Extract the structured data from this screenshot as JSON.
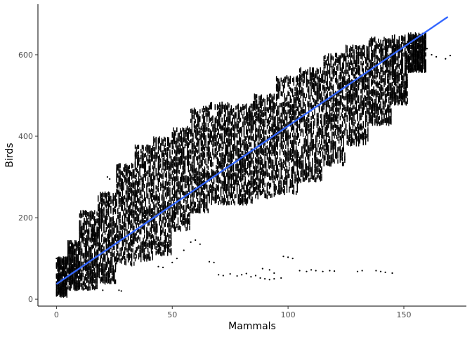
{
  "chart_data": {
    "type": "scatter",
    "title": "",
    "xlabel": "Mammals",
    "ylabel": "Birds",
    "xlim": [
      -8,
      177
    ],
    "ylim": [
      -17,
      724
    ],
    "x_ticks": [
      0,
      50,
      100,
      150
    ],
    "y_ticks": [
      0,
      200,
      400,
      600
    ],
    "grid": false,
    "legend": "none",
    "point_color": "#000000",
    "trend_line": {
      "color": "#3366FF",
      "x": [
        0,
        169
      ],
      "y": [
        37,
        693
      ]
    },
    "point_density_bands": [
      {
        "x_range": [
          0,
          5
        ],
        "y_range": [
          8,
          100
        ]
      },
      {
        "x_range": [
          5,
          10
        ],
        "y_range": [
          25,
          140
        ]
      },
      {
        "x_range": [
          10,
          18
        ],
        "y_range": [
          25,
          215
        ]
      },
      {
        "x_range": [
          18,
          26
        ],
        "y_range": [
          40,
          260
        ]
      },
      {
        "x_range": [
          26,
          34
        ],
        "y_range": [
          85,
          330
        ]
      },
      {
        "x_range": [
          34,
          42
        ],
        "y_range": [
          95,
          375
        ]
      },
      {
        "x_range": [
          42,
          50
        ],
        "y_range": [
          110,
          395
        ]
      },
      {
        "x_range": [
          50,
          58
        ],
        "y_range": [
          170,
          420
        ]
      },
      {
        "x_range": [
          58,
          66
        ],
        "y_range": [
          215,
          470
        ]
      },
      {
        "x_range": [
          66,
          75
        ],
        "y_range": [
          235,
          480
        ]
      },
      {
        "x_range": [
          75,
          85
        ],
        "y_range": [
          235,
          475
        ]
      },
      {
        "x_range": [
          85,
          95
        ],
        "y_range": [
          250,
          500
        ]
      },
      {
        "x_range": [
          95,
          105
        ],
        "y_range": [
          260,
          545
        ]
      },
      {
        "x_range": [
          105,
          115
        ],
        "y_range": [
          290,
          565
        ]
      },
      {
        "x_range": [
          115,
          125
        ],
        "y_range": [
          330,
          600
        ]
      },
      {
        "x_range": [
          125,
          135
        ],
        "y_range": [
          380,
          620
        ]
      },
      {
        "x_range": [
          135,
          145
        ],
        "y_range": [
          430,
          640
        ]
      },
      {
        "x_range": [
          145,
          152
        ],
        "y_range": [
          480,
          645
        ]
      },
      {
        "x_range": [
          152,
          160
        ],
        "y_range": [
          560,
          650
        ]
      }
    ],
    "outlier_points": [
      [
        22,
        300
      ],
      [
        23,
        295
      ],
      [
        12,
        25
      ],
      [
        20,
        22
      ],
      [
        27,
        22
      ],
      [
        28,
        20
      ],
      [
        0,
        100
      ],
      [
        1,
        85
      ],
      [
        3,
        70
      ],
      [
        44,
        80
      ],
      [
        46,
        78
      ],
      [
        50,
        90
      ],
      [
        52,
        100
      ],
      [
        55,
        120
      ],
      [
        58,
        140
      ],
      [
        60,
        145
      ],
      [
        62,
        135
      ],
      [
        66,
        92
      ],
      [
        68,
        90
      ],
      [
        70,
        60
      ],
      [
        72,
        58
      ],
      [
        75,
        62
      ],
      [
        78,
        57
      ],
      [
        80,
        60
      ],
      [
        82,
        63
      ],
      [
        84,
        55
      ],
      [
        86,
        58
      ],
      [
        88,
        52
      ],
      [
        90,
        50
      ],
      [
        92,
        48
      ],
      [
        94,
        50
      ],
      [
        97,
        52
      ],
      [
        89,
        75
      ],
      [
        92,
        72
      ],
      [
        94,
        64
      ],
      [
        98,
        105
      ],
      [
        100,
        103
      ],
      [
        102,
        100
      ],
      [
        105,
        70
      ],
      [
        108,
        68
      ],
      [
        110,
        72
      ],
      [
        112,
        70
      ],
      [
        115,
        68
      ],
      [
        118,
        70
      ],
      [
        120,
        69
      ],
      [
        130,
        68
      ],
      [
        132,
        70
      ],
      [
        138,
        70
      ],
      [
        140,
        68
      ],
      [
        142,
        66
      ],
      [
        145,
        64
      ],
      [
        160,
        615
      ],
      [
        162,
        600
      ],
      [
        164,
        595
      ],
      [
        168,
        590
      ],
      [
        170,
        598
      ]
    ]
  }
}
